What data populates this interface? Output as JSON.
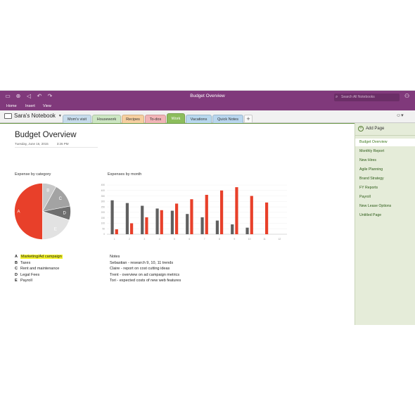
{
  "window": {
    "title": "Budget Overview",
    "search_placeholder": "Search All Notebooks"
  },
  "ribbon": {
    "tabs": [
      "Home",
      "Insert",
      "View"
    ]
  },
  "notebook": {
    "name": "Sara's Notebook"
  },
  "sections": [
    {
      "label": "Mom's visit",
      "color": "#c7dcec"
    },
    {
      "label": "Housework",
      "color": "#cde6c3"
    },
    {
      "label": "Recipes",
      "color": "#f6cfa0"
    },
    {
      "label": "To-dos",
      "color": "#f1b4b7"
    },
    {
      "label": "Work",
      "color": "#8cbd5c"
    },
    {
      "label": "Vacations",
      "color": "#b8d8ee"
    },
    {
      "label": "Quick Notes",
      "color": "#b9d6ee"
    }
  ],
  "page": {
    "title": "Budget Overview",
    "date": "Tuesday, June 16, 2015",
    "time": "3:26 PM",
    "pie_caption": "Expense by category",
    "bar_caption": "Expenses by month"
  },
  "chart_data": [
    {
      "type": "pie",
      "title": "Expense by category",
      "slice_labels": [
        "A",
        "B",
        "C",
        "D",
        "E"
      ],
      "values": [
        50,
        8,
        14,
        8,
        20
      ],
      "colors": [
        "#e8402a",
        "#c8c8c8",
        "#a3a3a3",
        "#6f6f6f",
        "#e2e2e2"
      ]
    },
    {
      "type": "bar",
      "title": "Expenses by month",
      "categories": [
        "1",
        "2",
        "3",
        "4",
        "5",
        "6",
        "7",
        "8",
        "9",
        "10",
        "11",
        "12"
      ],
      "ylim": [
        0,
        450
      ],
      "y_ticks": [
        "0",
        "50",
        "100",
        "150",
        "200",
        "250",
        "300",
        "350",
        "400",
        "450"
      ],
      "series": [
        {
          "values": [
            310,
            285,
            260,
            235,
            215,
            185,
            155,
            125,
            90,
            60,
            null,
            null
          ],
          "color": "#606060"
        },
        {
          "values": [
            45,
            100,
            155,
            220,
            280,
            320,
            360,
            400,
            430,
            350,
            290,
            null
          ],
          "color": "#e8402a"
        }
      ]
    }
  ],
  "legend": [
    {
      "key": "A",
      "label": "Marketing/Ad campaign",
      "highlight": true
    },
    {
      "key": "B",
      "label": "Taxes",
      "highlight": false
    },
    {
      "key": "C",
      "label": "Rent and maintenance",
      "highlight": false
    },
    {
      "key": "D",
      "label": "Legal Fees",
      "highlight": false
    },
    {
      "key": "E",
      "label": "Payroll",
      "highlight": false
    }
  ],
  "notes": {
    "heading": "Notes",
    "lines": [
      "Sebastian - research 9, 10, 11 trends",
      "Claire - report on cost cutting ideas",
      "Trent - overview on ad campaign metrics",
      "Tori - expected costs of new web features"
    ]
  },
  "pages_panel": {
    "add_label": "Add Page",
    "items": [
      "Budget Overview",
      "Monthly Report",
      "New Hires",
      "Agile Planning",
      "Brand Strategy",
      "FY Reports",
      "Payroll",
      "New Lease Options",
      "Untitled Page"
    ]
  }
}
